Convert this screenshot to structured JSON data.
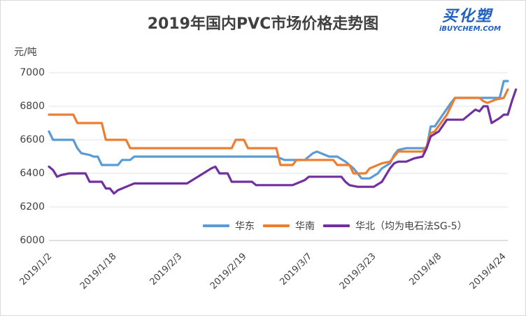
{
  "logo": {
    "text_cn": "买化塑",
    "text_en": "iBUYCHEM.COM",
    "color": "#1f5fbf"
  },
  "chart_data": {
    "type": "line",
    "title": "2019年国内PVC市场价格走势图",
    "ylabel": "元/吨",
    "xlabel": "",
    "ylim": [
      6000,
      7000
    ],
    "yticks": [
      6000,
      6200,
      6400,
      6600,
      6800,
      7000
    ],
    "x_range": [
      0,
      113
    ],
    "xticks": [
      {
        "label": "2019/1/2",
        "x": 0
      },
      {
        "label": "2019/1/18",
        "x": 16
      },
      {
        "label": "2019/2/3",
        "x": 32
      },
      {
        "label": "2019/2/19",
        "x": 48
      },
      {
        "label": "2019/3/7",
        "x": 64
      },
      {
        "label": "2019/3/23",
        "x": 80
      },
      {
        "label": "2019/4/8",
        "x": 96
      },
      {
        "label": "2019/4/24",
        "x": 112
      }
    ],
    "grid": true,
    "legend_position": "bottom-right",
    "series": [
      {
        "name": "华东",
        "color": "#5b9bd5",
        "points": [
          [
            0,
            6650
          ],
          [
            1,
            6600
          ],
          [
            6,
            6600
          ],
          [
            7,
            6550
          ],
          [
            8,
            6520
          ],
          [
            10,
            6510
          ],
          [
            11,
            6500
          ],
          [
            12,
            6500
          ],
          [
            13,
            6450
          ],
          [
            17,
            6450
          ],
          [
            18,
            6480
          ],
          [
            20,
            6480
          ],
          [
            21,
            6500
          ],
          [
            45,
            6500
          ],
          [
            50,
            6500
          ],
          [
            56,
            6500
          ],
          [
            58,
            6480
          ],
          [
            63,
            6480
          ],
          [
            64,
            6500
          ],
          [
            65,
            6520
          ],
          [
            66,
            6530
          ],
          [
            68,
            6510
          ],
          [
            69,
            6500
          ],
          [
            71,
            6500
          ],
          [
            73,
            6470
          ],
          [
            75,
            6430
          ],
          [
            77,
            6370
          ],
          [
            79,
            6370
          ],
          [
            81,
            6400
          ],
          [
            82,
            6430
          ],
          [
            84,
            6460
          ],
          [
            85,
            6510
          ],
          [
            86,
            6540
          ],
          [
            88,
            6550
          ],
          [
            93,
            6550
          ],
          [
            94,
            6680
          ],
          [
            95,
            6680
          ],
          [
            97,
            6750
          ],
          [
            99,
            6820
          ],
          [
            100,
            6850
          ],
          [
            111,
            6850
          ],
          [
            112,
            6950
          ],
          [
            113,
            6950
          ]
        ]
      },
      {
        "name": "华南",
        "color": "#ed7d31",
        "points": [
          [
            0,
            6750
          ],
          [
            6,
            6750
          ],
          [
            7,
            6700
          ],
          [
            13,
            6700
          ],
          [
            14,
            6600
          ],
          [
            19,
            6600
          ],
          [
            20,
            6550
          ],
          [
            45,
            6550
          ],
          [
            46,
            6600
          ],
          [
            48,
            6600
          ],
          [
            49,
            6550
          ],
          [
            54,
            6550
          ],
          [
            56,
            6550
          ],
          [
            57,
            6450
          ],
          [
            60,
            6450
          ],
          [
            61,
            6480
          ],
          [
            70,
            6480
          ],
          [
            71,
            6450
          ],
          [
            74,
            6450
          ],
          [
            75,
            6400
          ],
          [
            78,
            6400
          ],
          [
            79,
            6430
          ],
          [
            82,
            6460
          ],
          [
            84,
            6470
          ],
          [
            86,
            6530
          ],
          [
            92,
            6530
          ],
          [
            93,
            6560
          ],
          [
            94,
            6640
          ],
          [
            95,
            6650
          ],
          [
            98,
            6750
          ],
          [
            100,
            6850
          ],
          [
            106,
            6850
          ],
          [
            107,
            6830
          ],
          [
            108,
            6820
          ],
          [
            110,
            6840
          ],
          [
            112,
            6850
          ],
          [
            113,
            6900
          ]
        ]
      },
      {
        "name": "华北（均为电石法SG-5）",
        "color": "#7030a0",
        "points": [
          [
            0,
            6440
          ],
          [
            1,
            6420
          ],
          [
            2,
            6380
          ],
          [
            3,
            6390
          ],
          [
            5,
            6400
          ],
          [
            9,
            6400
          ],
          [
            10,
            6350
          ],
          [
            13,
            6350
          ],
          [
            14,
            6310
          ],
          [
            15,
            6310
          ],
          [
            16,
            6280
          ],
          [
            17,
            6300
          ],
          [
            20,
            6330
          ],
          [
            21,
            6340
          ],
          [
            34,
            6340
          ],
          [
            36,
            6370
          ],
          [
            38,
            6400
          ],
          [
            40,
            6430
          ],
          [
            41,
            6440
          ],
          [
            42,
            6400
          ],
          [
            44,
            6400
          ],
          [
            45,
            6350
          ],
          [
            50,
            6350
          ],
          [
            51,
            6330
          ],
          [
            60,
            6330
          ],
          [
            61,
            6340
          ],
          [
            63,
            6360
          ],
          [
            64,
            6380
          ],
          [
            72,
            6380
          ],
          [
            73,
            6350
          ],
          [
            74,
            6330
          ],
          [
            76,
            6320
          ],
          [
            80,
            6320
          ],
          [
            82,
            6350
          ],
          [
            84,
            6430
          ],
          [
            85,
            6460
          ],
          [
            86,
            6470
          ],
          [
            88,
            6470
          ],
          [
            90,
            6490
          ],
          [
            92,
            6500
          ],
          [
            93,
            6550
          ],
          [
            94,
            6620
          ],
          [
            96,
            6650
          ],
          [
            98,
            6720
          ],
          [
            102,
            6720
          ],
          [
            105,
            6780
          ],
          [
            106,
            6770
          ],
          [
            107,
            6800
          ],
          [
            108,
            6800
          ],
          [
            109,
            6700
          ],
          [
            111,
            6730
          ],
          [
            112,
            6750
          ],
          [
            113,
            6750
          ],
          [
            114,
            6830
          ],
          [
            115,
            6900
          ]
        ]
      }
    ]
  }
}
